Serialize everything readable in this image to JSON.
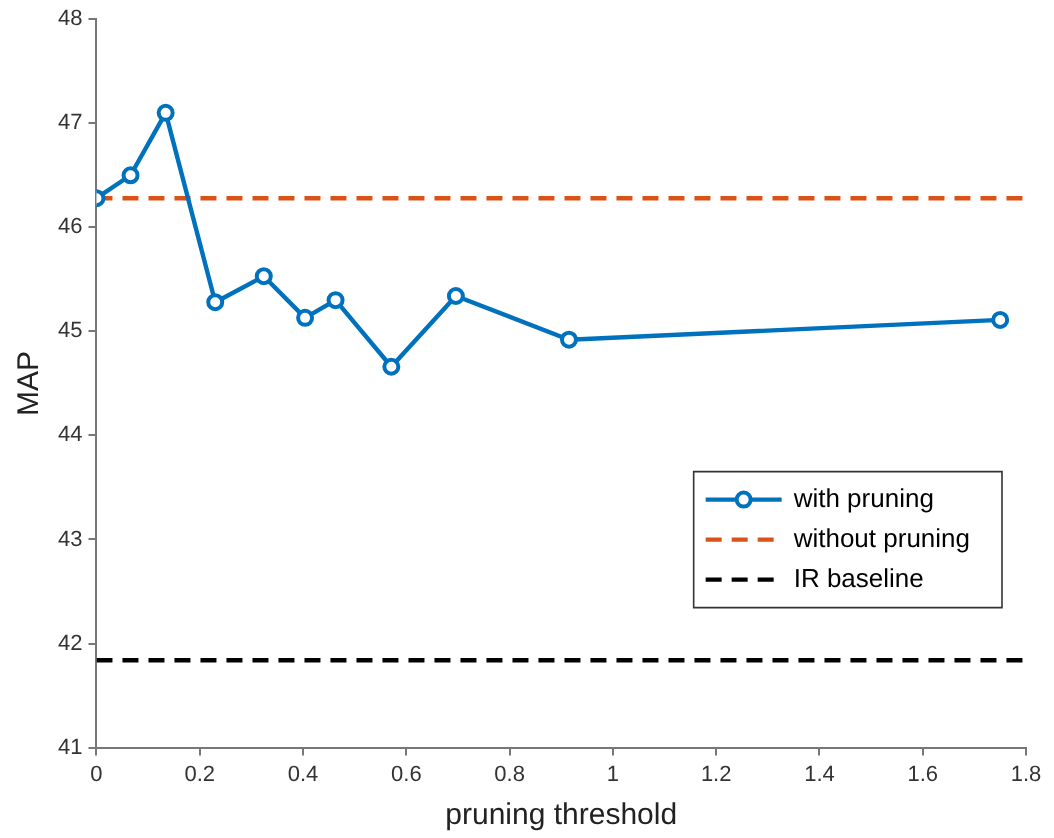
{
  "chart_data": {
    "type": "line",
    "xlabel": "pruning threshold",
    "ylabel": "MAP",
    "xlim": [
      0,
      1.8
    ],
    "xticks": [
      0,
      0.2,
      0.4,
      0.6,
      0.8,
      1,
      1.2,
      1.4,
      1.6,
      1.8
    ],
    "ylim": [
      41,
      48
    ],
    "yticks": [
      41,
      42,
      43,
      44,
      45,
      46,
      47,
      48
    ],
    "grid": false,
    "legend": "bottom right",
    "series": [
      {
        "name": "with pruning",
        "color": "#0072bd",
        "marker": "circle",
        "line_style": "solid",
        "x": [
          0,
          0.066,
          0.134,
          0.23,
          0.324,
          0.404,
          0.463,
          0.571,
          0.696,
          0.915,
          1.75
        ],
        "values": [
          46.28,
          46.5,
          47.1,
          45.28,
          45.53,
          45.13,
          45.3,
          44.66,
          45.34,
          44.92,
          45.11
        ]
      },
      {
        "name": "without pruning",
        "color": "#d95319",
        "marker": "none",
        "line_style": "dashed",
        "x": [
          0,
          1.8
        ],
        "values": [
          46.28,
          46.28
        ]
      },
      {
        "name": "IR baseline",
        "color": "#000000",
        "marker": "none",
        "line_style": "dashed",
        "x": [
          0,
          1.8
        ],
        "values": [
          41.84,
          41.84
        ]
      }
    ]
  }
}
